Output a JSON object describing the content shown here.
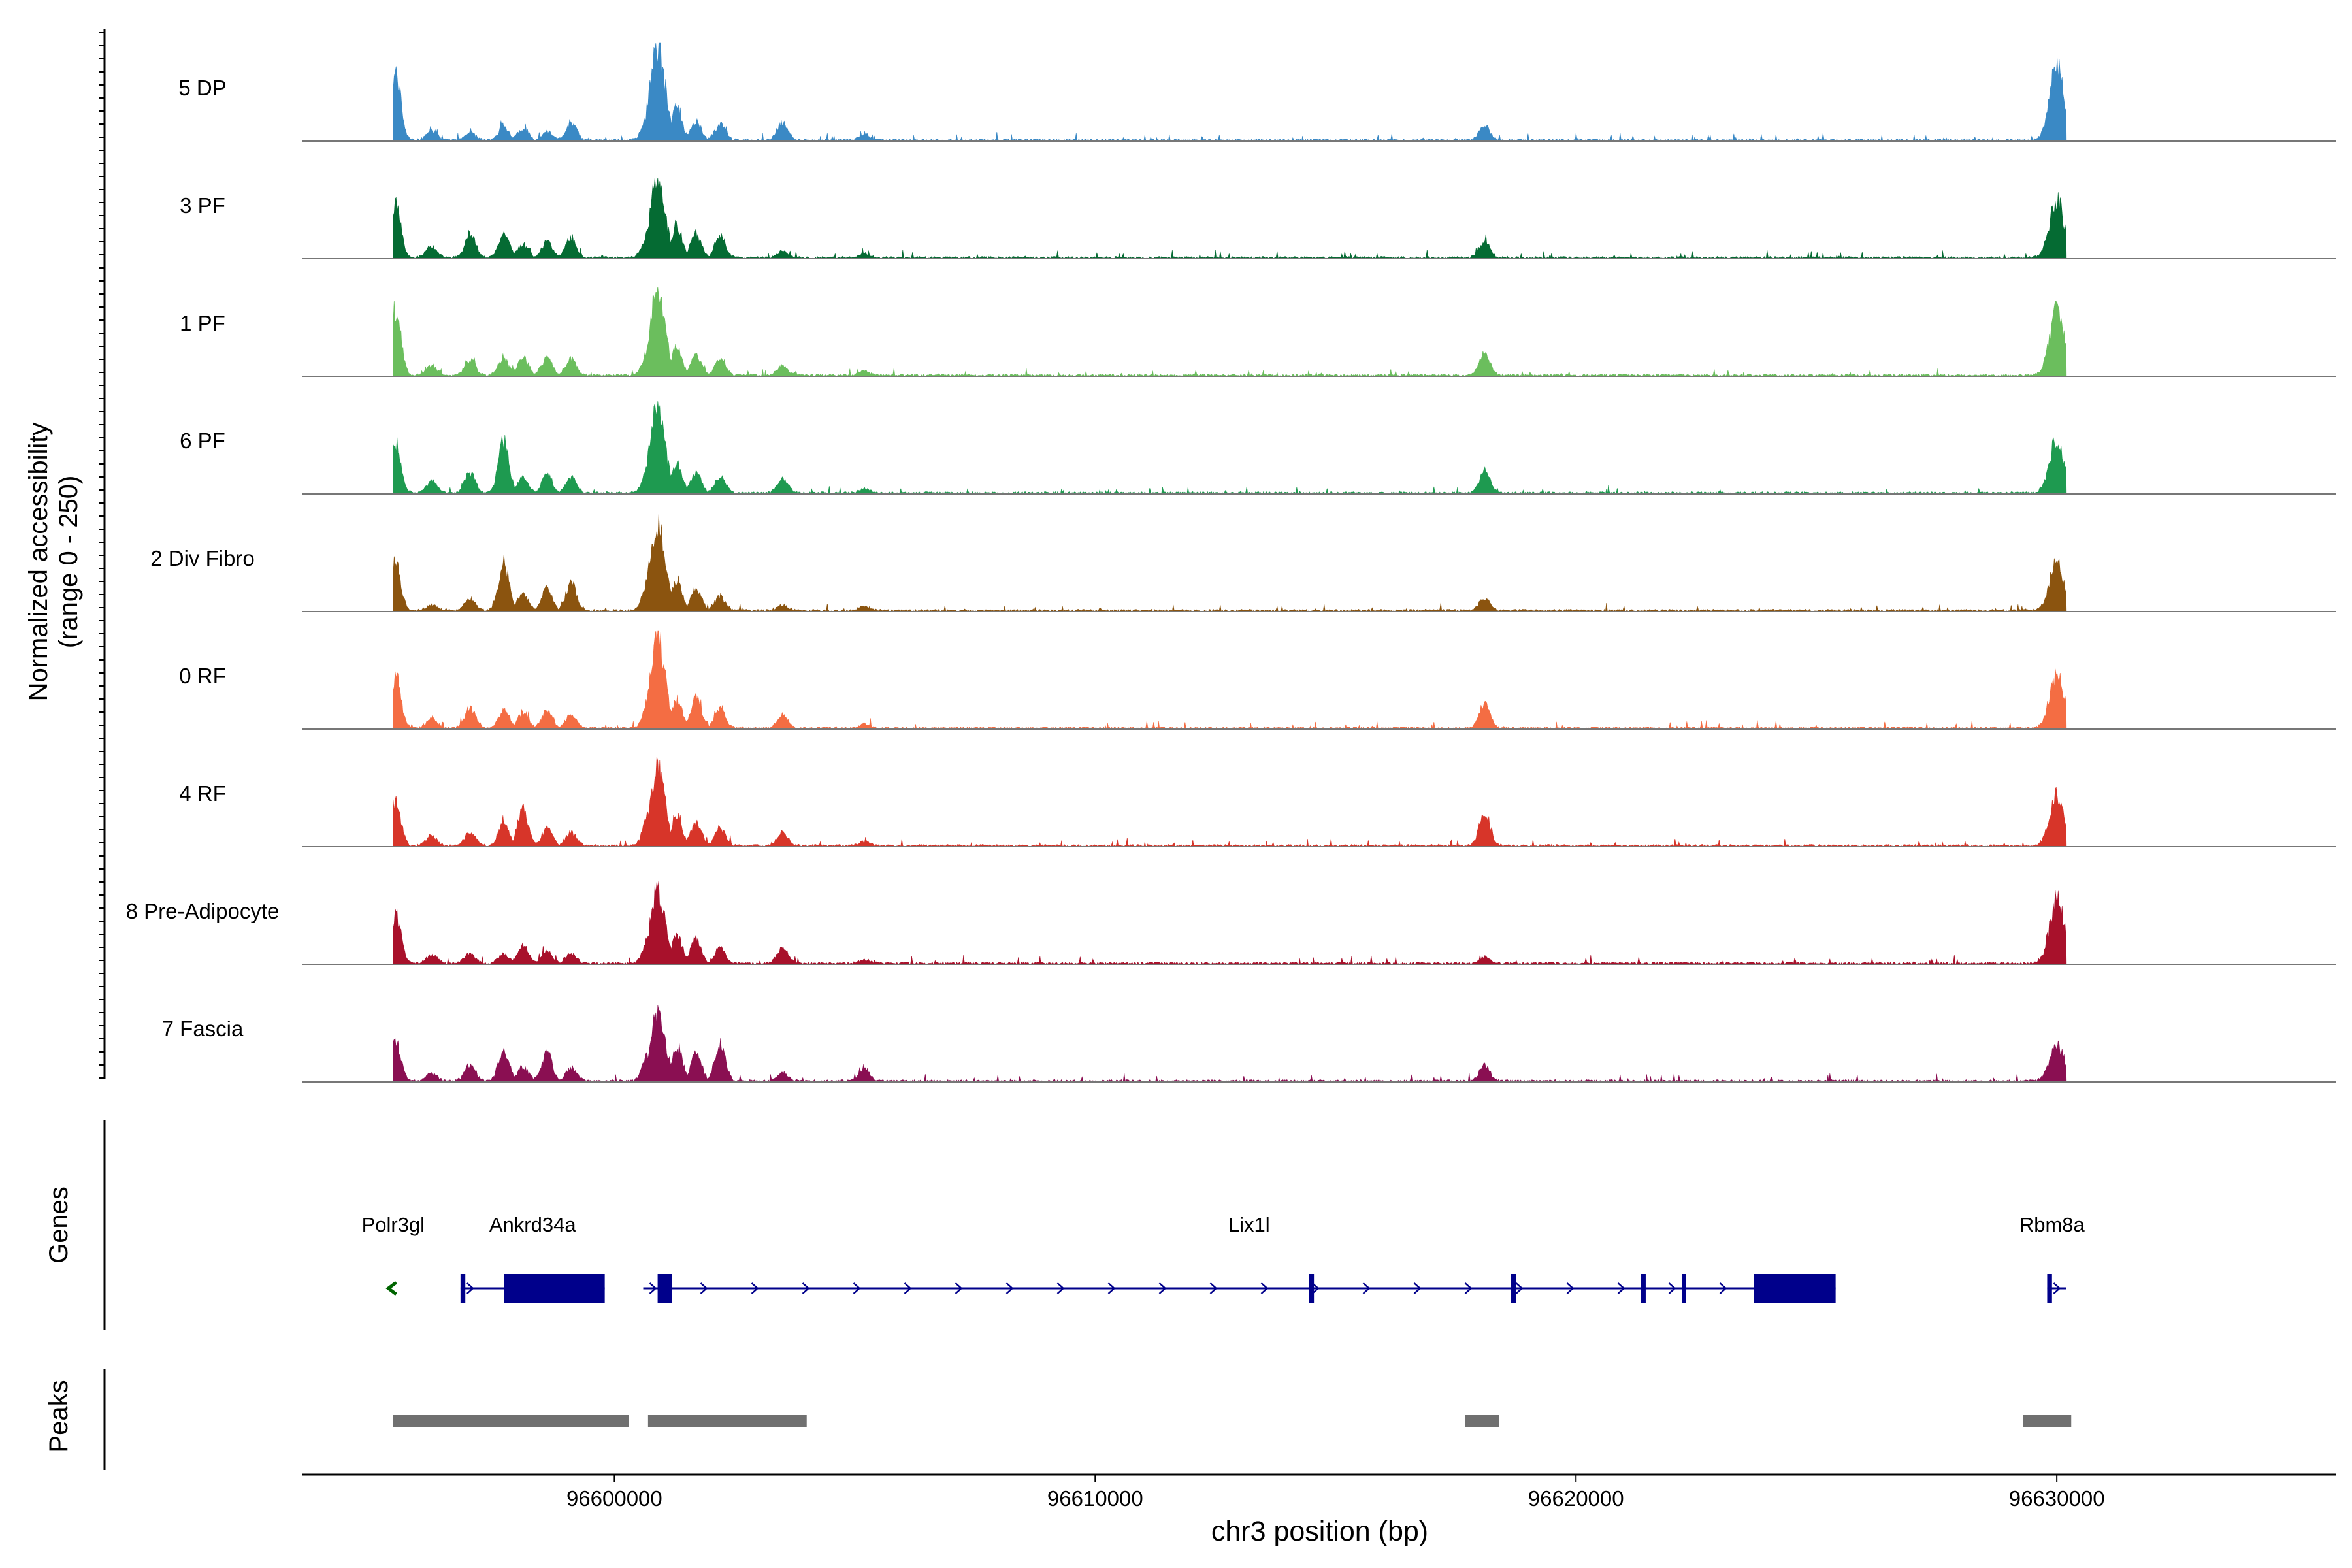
{
  "chart_data": {
    "type": "area",
    "title": "",
    "ylabel_line1": "Normalized accessibility",
    "ylabel_line2": "(range 0 - 250)",
    "xlabel": "chr3 position (bp)",
    "x_range": [
      96593500,
      96635800
    ],
    "y_range": [
      0,
      250
    ],
    "x_ticks": [
      {
        "value": 96600000,
        "label": "96600000"
      },
      {
        "value": 96610000,
        "label": "96610000"
      },
      {
        "value": 96620000,
        "label": "96620000"
      },
      {
        "value": 96630000,
        "label": "96630000"
      }
    ],
    "signal_extent": [
      96595400,
      96630200
    ],
    "peak_positions": [
      96595450,
      96596200,
      96597000,
      96597700,
      96598100,
      96598600,
      96599100,
      96600700,
      96600900,
      96601300,
      96601700,
      96602200,
      96603500,
      96605200,
      96618100,
      96630000
    ],
    "series": [
      {
        "name": "5 DP",
        "color": "#3A89C5",
        "peaks": [
          170,
          25,
          20,
          35,
          30,
          22,
          45,
          70,
          240,
          80,
          45,
          40,
          45,
          15,
          35,
          190
        ]
      },
      {
        "name": "3 PF",
        "color": "#056B33",
        "peaks": [
          135,
          30,
          60,
          60,
          35,
          40,
          50,
          60,
          205,
          80,
          60,
          55,
          15,
          10,
          45,
          145
        ]
      },
      {
        "name": "1 PF",
        "color": "#6BBE5D",
        "peaks": [
          165,
          25,
          40,
          45,
          45,
          45,
          40,
          60,
          215,
          70,
          50,
          45,
          25,
          10,
          55,
          165
        ]
      },
      {
        "name": "6 PF",
        "color": "#1E9A50",
        "peaks": [
          130,
          30,
          50,
          130,
          40,
          45,
          40,
          60,
          225,
          75,
          50,
          45,
          35,
          10,
          55,
          135
        ]
      },
      {
        "name": "2 Div Fibro",
        "color": "#8B540F",
        "peaks": [
          120,
          15,
          30,
          120,
          40,
          55,
          70,
          70,
          225,
          80,
          55,
          35,
          15,
          10,
          30,
          115
        ]
      },
      {
        "name": "0 RF",
        "color": "#F46D43",
        "peaks": [
          130,
          25,
          50,
          45,
          40,
          45,
          35,
          60,
          235,
          70,
          75,
          45,
          35,
          10,
          65,
          135
        ]
      },
      {
        "name": "4 RF",
        "color": "#D73529",
        "peaks": [
          110,
          25,
          35,
          55,
          90,
          45,
          35,
          70,
          190,
          80,
          60,
          45,
          35,
          10,
          85,
          130
        ]
      },
      {
        "name": "8 Pre-Adipocyte",
        "color": "#A8112B",
        "peaks": [
          125,
          20,
          25,
          25,
          45,
          30,
          25,
          60,
          180,
          70,
          60,
          40,
          40,
          10,
          15,
          160
        ]
      },
      {
        "name": "7 Fascia",
        "color": "#8A0F52",
        "peaks": [
          100,
          20,
          40,
          75,
          35,
          70,
          35,
          70,
          165,
          90,
          70,
          95,
          20,
          30,
          40,
          90
        ]
      }
    ],
    "gene_track": {
      "label": "Genes",
      "genes": [
        {
          "name": "Polr3gl",
          "strand": "-",
          "color": "#006400",
          "start": 96595300,
          "end": 96595500,
          "label_pos": 96595400,
          "exons": [],
          "thin_exons": []
        },
        {
          "name": "Ankrd34a",
          "strand": "+",
          "color": "#00008B",
          "start": 96597800,
          "end": 96599800,
          "label_pos": 96598300,
          "exons": [
            [
              96597700,
              96599800
            ]
          ],
          "thin_exons": [
            [
              96596800,
              96596900
            ]
          ]
        },
        {
          "name": "Lix1l",
          "strand": "+",
          "color": "#00008B",
          "start": 96600600,
          "end": 96625400,
          "label_pos": 96613200,
          "exons": [
            [
              96600900,
              96601200
            ],
            [
              96623700,
              96625400
            ]
          ],
          "thin_exons": [
            [
              96614450,
              96614550
            ],
            [
              96618650,
              96618750
            ],
            [
              96621350,
              96621450
            ],
            [
              96622200,
              96622250
            ]
          ]
        },
        {
          "name": "Rbm8a",
          "strand": "+",
          "color": "#00008B",
          "start": 96629800,
          "end": 96630200,
          "label_pos": 96629900,
          "exons": [],
          "thin_exons": [
            [
              96629800,
              96629900
            ]
          ]
        }
      ]
    },
    "peak_track": {
      "label": "Peaks",
      "color": "#707070",
      "regions": [
        [
          96595400,
          96600300
        ],
        [
          96600700,
          96604000
        ],
        [
          96617700,
          96618400
        ],
        [
          96629300,
          96630300
        ]
      ]
    }
  }
}
